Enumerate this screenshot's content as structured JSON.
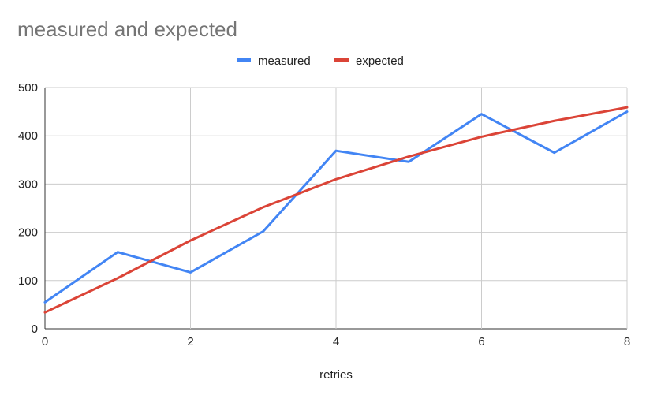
{
  "chart_data": {
    "type": "line",
    "title": "measured and expected",
    "xlabel": "retries",
    "ylabel": "",
    "x": [
      0,
      1,
      2,
      3,
      4,
      5,
      6,
      7,
      8
    ],
    "xlim": [
      0,
      8
    ],
    "ylim": [
      0,
      500
    ],
    "xticks": [
      "0",
      "2",
      "4",
      "6",
      "8"
    ],
    "yticks": [
      "0",
      "100",
      "200",
      "300",
      "400",
      "500"
    ],
    "grid": true,
    "legend_position": "top-center",
    "series": [
      {
        "name": "measured",
        "color": "#4285f4",
        "values": [
          55,
          159,
          117,
          202,
          369,
          346,
          445,
          365,
          450
        ]
      },
      {
        "name": "expected",
        "color": "#db4437",
        "values": [
          34,
          105,
          183,
          252,
          310,
          357,
          398,
          431,
          459
        ]
      }
    ]
  }
}
